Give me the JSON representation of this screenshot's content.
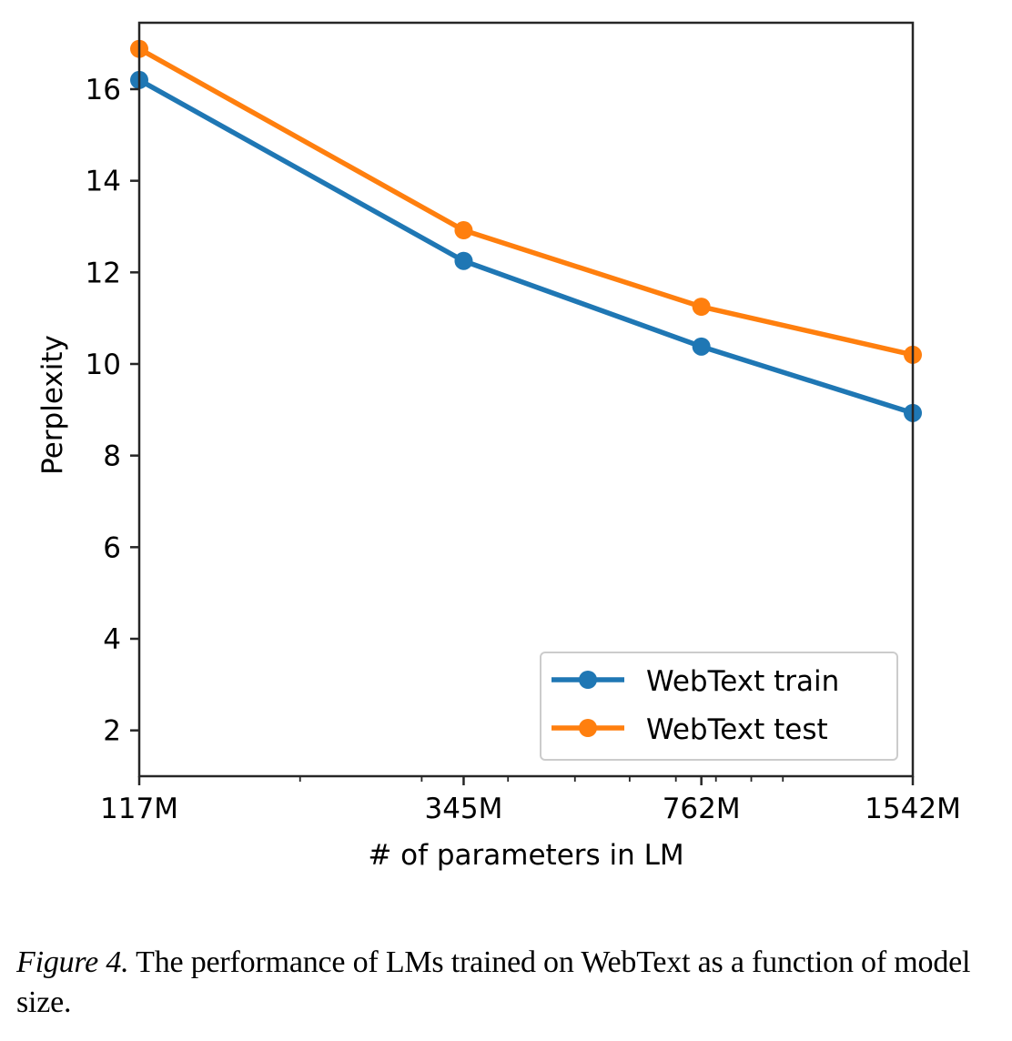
{
  "chart_data": {
    "type": "line",
    "title": "",
    "xlabel": "# of parameters in LM",
    "ylabel": "Perplexity",
    "xscale": "log",
    "x": [
      117,
      345,
      762,
      1542
    ],
    "x_unit": "M",
    "xticks": [
      {
        "value": 117,
        "label": "117M"
      },
      {
        "value": 345,
        "label": "345M"
      },
      {
        "value": 762,
        "label": "762M"
      },
      {
        "value": 1542,
        "label": "1542M"
      }
    ],
    "x_minor_ticks": [
      200,
      300,
      400,
      500,
      600,
      700,
      800,
      900,
      1000
    ],
    "xlim": [
      117,
      1542
    ],
    "ylim": [
      1.0,
      17.45
    ],
    "yticks": [
      {
        "value": 2,
        "label": "2"
      },
      {
        "value": 4,
        "label": "4"
      },
      {
        "value": 6,
        "label": "6"
      },
      {
        "value": 8,
        "label": "8"
      },
      {
        "value": 10,
        "label": "10"
      },
      {
        "value": 12,
        "label": "12"
      },
      {
        "value": 14,
        "label": "14"
      },
      {
        "value": 16,
        "label": "16"
      }
    ],
    "grid": false,
    "legend_position": "lower-right",
    "series": [
      {
        "name": "WebText train",
        "color": "#1f77b4",
        "marker": "circle",
        "values": [
          16.2,
          12.25,
          10.38,
          8.93
        ]
      },
      {
        "name": "WebText test",
        "color": "#ff7f0e",
        "marker": "circle",
        "values": [
          16.88,
          12.92,
          11.25,
          10.2
        ]
      }
    ]
  },
  "caption": {
    "label": "Figure 4.",
    "text": " The performance of LMs trained on WebText as a function of model size."
  }
}
